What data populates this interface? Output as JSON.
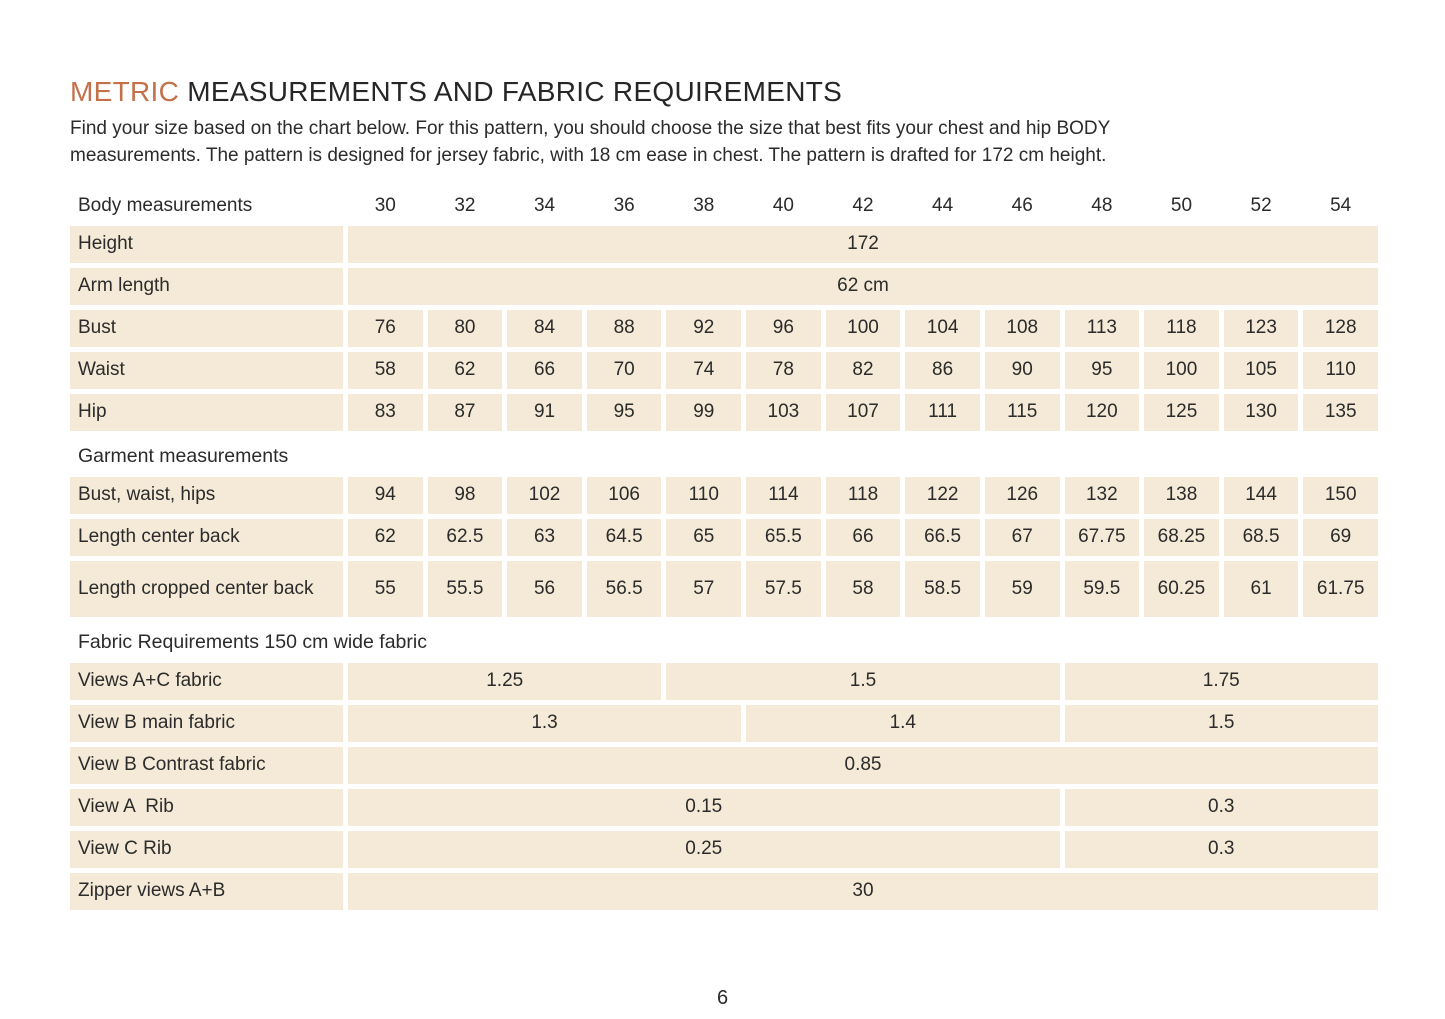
{
  "page": {
    "title": {
      "highlight": "METRIC",
      "rest": "MEASUREMENTS AND FABRIC REQUIREMENTS"
    },
    "intro_lines": [
      "Find your size based on the chart below. For this pattern, you should choose the size that best fits your chest and hip BODY",
      "measurements. The pattern is designed for jersey fabric, with 18 cm ease in chest. The pattern is drafted for 172 cm height."
    ],
    "page_number": "6"
  },
  "colors": {
    "accent_orange": "#c4714a",
    "cell_beige": "#f4ead7",
    "text_dark": "#262626"
  },
  "table": {
    "header_label": "Body measurements",
    "sizes": [
      "30",
      "32",
      "34",
      "36",
      "38",
      "40",
      "42",
      "44",
      "46",
      "48",
      "50",
      "52",
      "54"
    ],
    "sections": [
      {
        "rows": [
          {
            "label": "Height",
            "cells": [
              {
                "v": "172",
                "span": 13
              }
            ]
          },
          {
            "label": "Arm length",
            "cells": [
              {
                "v": "62 cm",
                "span": 13
              }
            ]
          },
          {
            "label": "Bust",
            "cells": [
              {
                "v": "76"
              },
              {
                "v": "80"
              },
              {
                "v": "84"
              },
              {
                "v": "88"
              },
              {
                "v": "92"
              },
              {
                "v": "96"
              },
              {
                "v": "100"
              },
              {
                "v": "104"
              },
              {
                "v": "108"
              },
              {
                "v": "113"
              },
              {
                "v": "118"
              },
              {
                "v": "123"
              },
              {
                "v": "128"
              }
            ]
          },
          {
            "label": "Waist",
            "cells": [
              {
                "v": "58"
              },
              {
                "v": "62"
              },
              {
                "v": "66"
              },
              {
                "v": "70"
              },
              {
                "v": "74"
              },
              {
                "v": "78"
              },
              {
                "v": "82"
              },
              {
                "v": "86"
              },
              {
                "v": "90"
              },
              {
                "v": "95"
              },
              {
                "v": "100"
              },
              {
                "v": "105"
              },
              {
                "v": "110"
              }
            ]
          },
          {
            "label": "Hip",
            "cells": [
              {
                "v": "83"
              },
              {
                "v": "87"
              },
              {
                "v": "91"
              },
              {
                "v": "95"
              },
              {
                "v": "99"
              },
              {
                "v": "103"
              },
              {
                "v": "107"
              },
              {
                "v": "111"
              },
              {
                "v": "115"
              },
              {
                "v": "120"
              },
              {
                "v": "125"
              },
              {
                "v": "130"
              },
              {
                "v": "135"
              }
            ]
          }
        ]
      },
      {
        "title": "Garment measurements",
        "rows": [
          {
            "label": "Bust, waist, hips",
            "cells": [
              {
                "v": "94"
              },
              {
                "v": "98"
              },
              {
                "v": "102"
              },
              {
                "v": "106"
              },
              {
                "v": "110"
              },
              {
                "v": "114"
              },
              {
                "v": "118"
              },
              {
                "v": "122"
              },
              {
                "v": "126"
              },
              {
                "v": "132"
              },
              {
                "v": "138"
              },
              {
                "v": "144"
              },
              {
                "v": "150"
              }
            ]
          },
          {
            "label": "Length center back",
            "cells": [
              {
                "v": "62"
              },
              {
                "v": "62.5"
              },
              {
                "v": "63"
              },
              {
                "v": "64.5"
              },
              {
                "v": "65"
              },
              {
                "v": "65.5"
              },
              {
                "v": "66"
              },
              {
                "v": "66.5"
              },
              {
                "v": "67"
              },
              {
                "v": "67.75"
              },
              {
                "v": "68.25"
              },
              {
                "v": "68.5"
              },
              {
                "v": "69"
              }
            ]
          },
          {
            "label": "Length cropped center back",
            "tall": true,
            "cells": [
              {
                "v": "55"
              },
              {
                "v": "55.5"
              },
              {
                "v": "56"
              },
              {
                "v": "56.5"
              },
              {
                "v": "57"
              },
              {
                "v": "57.5"
              },
              {
                "v": "58"
              },
              {
                "v": "58.5"
              },
              {
                "v": "59"
              },
              {
                "v": "59.5"
              },
              {
                "v": "60.25"
              },
              {
                "v": "61"
              },
              {
                "v": "61.75"
              }
            ]
          }
        ]
      },
      {
        "title": "Fabric Requirements 150 cm wide fabric",
        "rows": [
          {
            "label": "Views A+C fabric",
            "cells": [
              {
                "v": "1.25",
                "span": 4
              },
              {
                "v": "1.5",
                "span": 5
              },
              {
                "v": "1.75",
                "span": 4
              }
            ]
          },
          {
            "label": "View B main fabric",
            "cells": [
              {
                "v": "1.3",
                "span": 5
              },
              {
                "v": "1.4",
                "span": 4
              },
              {
                "v": "1.5",
                "span": 4
              }
            ]
          },
          {
            "label": "View B Contrast fabric",
            "cells": [
              {
                "v": "0.85",
                "span": 13
              }
            ]
          },
          {
            "label": "View A  Rib",
            "cells": [
              {
                "v": "0.15",
                "span": 9
              },
              {
                "v": "0.3",
                "span": 4
              }
            ]
          },
          {
            "label": "View C Rib",
            "cells": [
              {
                "v": "0.25",
                "span": 9
              },
              {
                "v": "0.3",
                "span": 4
              }
            ]
          },
          {
            "label": "Zipper views A+B",
            "cells": [
              {
                "v": "30",
                "span": 13
              }
            ]
          }
        ]
      }
    ]
  }
}
